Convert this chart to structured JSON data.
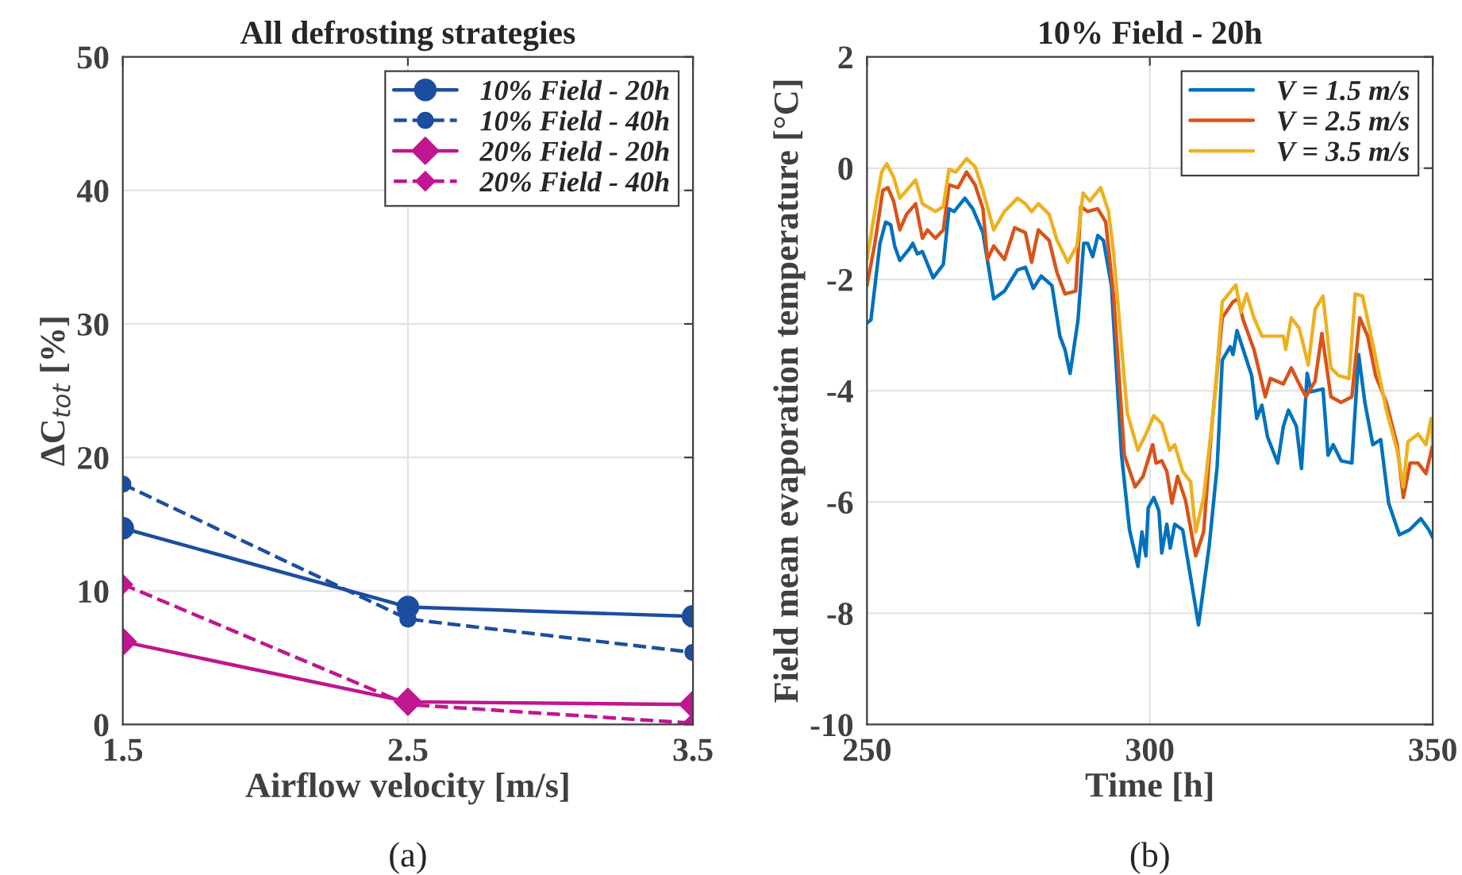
{
  "chart_data": [
    {
      "type": "line",
      "title": "All defrosting strategies",
      "xlabel": "Airflow velocity [m/s]",
      "ylabel": "ΔC$_{tot}$ [%]",
      "x": [
        1.5,
        2.5,
        3.5
      ],
      "xlim": [
        1.5,
        3.5
      ],
      "xticks": [
        1.5,
        2.5,
        3.5
      ],
      "ylim": [
        0,
        50
      ],
      "yticks": [
        0,
        10,
        20,
        30,
        40,
        50
      ],
      "grid": true,
      "legend": "top right",
      "annotations": [
        "(a)"
      ],
      "series": [
        {
          "name": "10% Field - 20h",
          "color": "#1c4ea0",
          "values": [
            14.7,
            8.8,
            8.1
          ],
          "marker": "circle",
          "line_style": "solid"
        },
        {
          "name": "10% Field - 40h",
          "color": "#1c4ea0",
          "values": [
            18,
            7.9,
            5.4
          ],
          "marker": "circle",
          "line_style": "dashed"
        },
        {
          "name": "20% Field - 20h",
          "color": "#c0168f",
          "values": [
            6.2,
            1.7,
            1.5
          ],
          "marker": "diamond",
          "line_style": "solid"
        },
        {
          "name": "20% Field - 40h",
          "color": "#c0168f",
          "values": [
            10.5,
            1.5,
            0.1
          ],
          "marker": "diamond",
          "line_style": "dashed"
        }
      ]
    },
    {
      "type": "line",
      "title": "10% Field - 20h",
      "xlabel": "Time [h]",
      "ylabel": "Field mean evaporation temperature [°C]",
      "xlim": [
        250,
        350
      ],
      "xticks": [
        250,
        300,
        350
      ],
      "ylim": [
        -10,
        2
      ],
      "yticks": [
        -10,
        -8,
        -6,
        -4,
        -2,
        0,
        2
      ],
      "grid": true,
      "legend": "top right",
      "annotations": [
        "(b)"
      ],
      "series": [
        {
          "name": "V = 1.5 m/s",
          "color": "#0072bd",
          "x": [
            250,
            250.7,
            252.3,
            253.3,
            254.2,
            254.9,
            255.8,
            257.5,
            258.1,
            258.9,
            259.8,
            261.7,
            263.5,
            264.5,
            265.4,
            267.3,
            268.7,
            270.5,
            272.4,
            274.3,
            276.6,
            278,
            279.4,
            280.8,
            282.7,
            284.1,
            285,
            285.9,
            287.3,
            288.3,
            289.0,
            289.9,
            290.8,
            291.8,
            293.2,
            295.0,
            296.4,
            297.9,
            298.6,
            299.3,
            299.7,
            300.7,
            301.6,
            302.1,
            303.0,
            303.6,
            304.4,
            305.8,
            307.2,
            308.6,
            310.5,
            311.9,
            312.8,
            314.2,
            314.7,
            315.4,
            316.5,
            318.0,
            318.9,
            319.8,
            320.8,
            322.6,
            323.6,
            324.5,
            325.9,
            326.8,
            327.8,
            328.5,
            330.6,
            331.5,
            332.4,
            333.8,
            335.7,
            336.9,
            338.0,
            339.4,
            340.8,
            342.2,
            344.1,
            345.9,
            347.9,
            349.3,
            350
          ],
          "values": [
            -2.78,
            -2.73,
            -1.35,
            -0.97,
            -1.02,
            -1.4,
            -1.66,
            -1.45,
            -1.35,
            -1.54,
            -1.5,
            -1.97,
            -1.73,
            -0.73,
            -0.78,
            -0.54,
            -0.73,
            -1.16,
            -2.35,
            -2.21,
            -1.83,
            -1.78,
            -2.16,
            -1.94,
            -2.11,
            -3.02,
            -3.26,
            -3.69,
            -2.73,
            -1.35,
            -1.35,
            -1.59,
            -1.21,
            -1.3,
            -2.11,
            -5.16,
            -6.5,
            -7.16,
            -6.54,
            -6.97,
            -6.11,
            -5.92,
            -6.16,
            -6.92,
            -6.4,
            -6.83,
            -6.4,
            -6.5,
            -7.35,
            -8.21,
            -6.78,
            -5.35,
            -3.45,
            -3.21,
            -3.35,
            -2.92,
            -3.26,
            -3.73,
            -4.5,
            -4.26,
            -4.83,
            -5.3,
            -4.64,
            -4.35,
            -4.64,
            -5.4,
            -3.69,
            -4.02,
            -3.97,
            -5.16,
            -4.97,
            -5.26,
            -5.3,
            -3.35,
            -4.21,
            -4.97,
            -4.88,
            -6.02,
            -6.59,
            -6.5,
            -6.3,
            -6.5,
            -6.64
          ]
        },
        {
          "name": "V = 2.5 m/s",
          "color": "#d95319",
          "x": [
            250,
            251.4,
            252.8,
            253.7,
            254.7,
            255.8,
            257,
            258.6,
            259.8,
            260.7,
            262.1,
            263.5,
            264.5,
            266.1,
            267.6,
            269.1,
            270.5,
            271.3,
            272.4,
            274.3,
            276.1,
            278,
            279.1,
            280.3,
            282.2,
            283.6,
            285.0,
            286.9,
            287.8,
            289.0,
            290.8,
            292.2,
            293.6,
            295.5,
            297.4,
            298.8,
            300.5,
            301.1,
            302.1,
            303.0,
            303.9,
            304.9,
            306.3,
            308.1,
            309.5,
            310.9,
            312.8,
            314.7,
            315.6,
            316.5,
            318.4,
            320.4,
            321.3,
            323.6,
            325.0,
            326.4,
            327.6,
            329.2,
            330.4,
            332.0,
            333.8,
            335.7,
            337.1,
            338.5,
            339.9,
            341.8,
            343.7,
            344.8,
            346.0,
            347.4,
            348.8,
            350
          ],
          "values": [
            -2.11,
            -1.35,
            -0.4,
            -0.35,
            -0.59,
            -1.11,
            -0.83,
            -0.64,
            -1.26,
            -1.11,
            -1.26,
            -1.11,
            -0.3,
            -0.35,
            -0.07,
            -0.3,
            -0.73,
            -1.64,
            -1.4,
            -1.64,
            -1.07,
            -1.16,
            -1.69,
            -1.11,
            -1.3,
            -1.88,
            -2.26,
            -2.21,
            -0.69,
            -0.78,
            -0.73,
            -0.97,
            -2.3,
            -5.16,
            -5.73,
            -5.54,
            -4.97,
            -5.3,
            -5.26,
            -5.45,
            -6.02,
            -5.54,
            -5.97,
            -6.97,
            -6.54,
            -4.69,
            -2.69,
            -2.4,
            -2.35,
            -2.73,
            -3.26,
            -4.11,
            -3.78,
            -3.88,
            -3.59,
            -3.88,
            -4.11,
            -3.83,
            -2.97,
            -4.11,
            -4.21,
            -4.11,
            -2.69,
            -3.02,
            -3.73,
            -4.21,
            -4.97,
            -5.92,
            -5.3,
            -5.3,
            -5.49,
            -4.97
          ]
        },
        {
          "name": "V = 3.5 m/s",
          "color": "#edb120",
          "x": [
            250,
            251.7,
            252.6,
            253.5,
            254.7,
            255.8,
            257,
            258.6,
            259.8,
            262.1,
            263.5,
            264.5,
            265.7,
            267.6,
            269.1,
            270.5,
            272.4,
            274.3,
            276.6,
            278,
            279.1,
            280.3,
            282.2,
            283.6,
            285.5,
            287.1,
            288.2,
            289.4,
            291.3,
            292.7,
            293.6,
            296.0,
            297.9,
            299.3,
            300.7,
            302.1,
            303.5,
            304.4,
            305.8,
            307.2,
            308.1,
            309.5,
            311.4,
            312.8,
            315.2,
            316.1,
            317.1,
            318.4,
            319.8,
            321.7,
            323.6,
            324.0,
            325.0,
            326.4,
            328.0,
            329.2,
            330.6,
            332.0,
            333.4,
            335.2,
            336.3,
            337.6,
            339.4,
            341.8,
            343.7,
            344.8,
            345.6,
            347.4,
            348.8,
            349.7,
            350
          ],
          "values": [
            -1.64,
            -0.59,
            -0.07,
            0.08,
            -0.16,
            -0.54,
            -0.4,
            -0.21,
            -0.64,
            -0.78,
            -0.69,
            -0.02,
            -0.07,
            0.17,
            0.03,
            -0.4,
            -1.11,
            -0.78,
            -0.54,
            -0.64,
            -0.78,
            -0.64,
            -0.83,
            -1.3,
            -1.69,
            -1.4,
            -0.45,
            -0.59,
            -0.35,
            -0.78,
            -1.54,
            -4.4,
            -5.07,
            -4.78,
            -4.45,
            -4.59,
            -5.07,
            -4.97,
            -5.45,
            -5.64,
            -6.54,
            -5.92,
            -4.21,
            -2.4,
            -2.1,
            -2.59,
            -2.26,
            -2.69,
            -3.02,
            -3.02,
            -3.02,
            -3.26,
            -2.69,
            -2.88,
            -3.54,
            -2.54,
            -2.3,
            -3.59,
            -3.73,
            -3.78,
            -2.26,
            -2.3,
            -3.16,
            -4.35,
            -5.07,
            -5.73,
            -4.92,
            -4.78,
            -4.97,
            -4.5,
            -4.97
          ]
        }
      ]
    }
  ]
}
